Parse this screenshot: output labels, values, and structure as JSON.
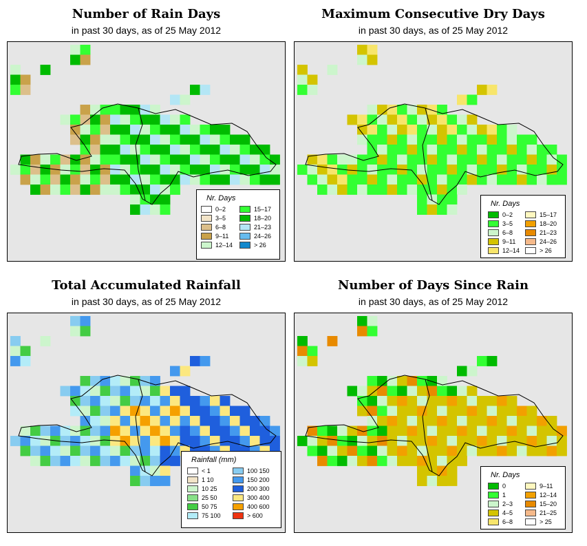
{
  "panels": [
    {
      "title": "Number of Rain Days",
      "subtitle": "in past 30 days, as of  25 May 2012",
      "legend_title": "Nr. Days",
      "legend_items": [
        {
          "label": "0–2",
          "color": "#ffffff"
        },
        {
          "label": "3–5",
          "color": "#f2e4c8"
        },
        {
          "label": "6–8",
          "color": "#dcbf8a"
        },
        {
          "label": "9–11",
          "color": "#c9a24a"
        },
        {
          "label": "12–14",
          "color": "#ccf5cc"
        },
        {
          "label": "15–17",
          "color": "#33ff33"
        },
        {
          "label": "18–20",
          "color": "#00bb00"
        },
        {
          "label": "21–23",
          "color": "#b3e6f5"
        },
        {
          "label": "24–26",
          "color": "#66bbee"
        },
        {
          "label": "> 26",
          "color": "#1188cc"
        }
      ]
    },
    {
      "title": "Maximum Consecutive Dry Days",
      "subtitle": "in past 30 days, as of  25 May 2012",
      "legend_title": "Nr. Days",
      "legend_items": [
        {
          "label": "0–2",
          "color": "#00bb00"
        },
        {
          "label": "3–5",
          "color": "#33ff33"
        },
        {
          "label": "6–8",
          "color": "#ccf5cc"
        },
        {
          "label": "9–11",
          "color": "#d4c400"
        },
        {
          "label": "12–14",
          "color": "#f7e56b"
        },
        {
          "label": "15–17",
          "color": "#fff8c0"
        },
        {
          "label": "18–20",
          "color": "#f2a000"
        },
        {
          "label": "21–23",
          "color": "#e88a00"
        },
        {
          "label": "24–26",
          "color": "#f5b98a"
        },
        {
          "label": "> 26",
          "color": "#ffffff"
        }
      ]
    },
    {
      "title": "Total Accumulated Rainfall",
      "subtitle": "in past 30 days, as of  25 May 2012",
      "legend_title": "Rainfall (mm)",
      "legend_items": [
        {
          "label": "< 1",
          "color": "#ffffff"
        },
        {
          "label": "1    10",
          "color": "#f2e4c8"
        },
        {
          "label": "10    25",
          "color": "#ccf5cc"
        },
        {
          "label": "25    50",
          "color": "#88e088"
        },
        {
          "label": "50    75",
          "color": "#44cc44"
        },
        {
          "label": "75    100",
          "color": "#b3ecf8"
        },
        {
          "label": "100   150",
          "color": "#88ccf0"
        },
        {
          "label": "150   200",
          "color": "#4499ee"
        },
        {
          "label": "200   300",
          "color": "#1f5fdd"
        },
        {
          "label": "300   400",
          "color": "#fce880"
        },
        {
          "label": "400   600",
          "color": "#f5a000"
        },
        {
          "label": "> 600",
          "color": "#ee3311"
        }
      ]
    },
    {
      "title": "Number of Days Since Rain",
      "subtitle": "in past 30 days, as of  25 May 2012",
      "legend_title": "Nr. Days",
      "legend_items": [
        {
          "label": "0",
          "color": "#00bb00"
        },
        {
          "label": "1",
          "color": "#33ff33"
        },
        {
          "label": "2–3",
          "color": "#ccf5cc"
        },
        {
          "label": "4–5",
          "color": "#d4c400"
        },
        {
          "label": "6–8",
          "color": "#f7e56b"
        },
        {
          "label": "9–11",
          "color": "#fff8c0"
        },
        {
          "label": "12–14",
          "color": "#f2a000"
        },
        {
          "label": "15–20",
          "color": "#e88a00"
        },
        {
          "label": "21–25",
          "color": "#f5b98a"
        },
        {
          "label": "> 25",
          "color": "#ffffff"
        }
      ]
    }
  ]
}
